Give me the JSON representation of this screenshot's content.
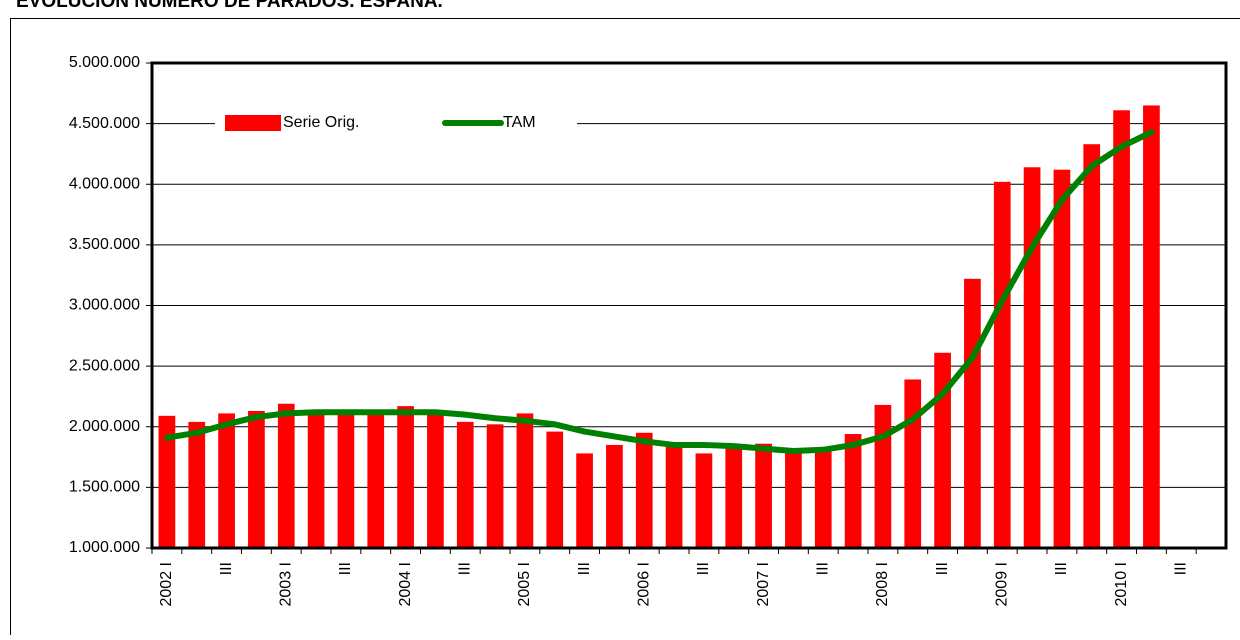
{
  "chart_data": {
    "type": "bar_line",
    "title": "EVOLUCIÓN NÚMERO DE PARADOS. ESPAÑA.",
    "categories": [
      "2002 I",
      null,
      "III",
      null,
      "2003 I",
      null,
      "III",
      null,
      "2004 I",
      null,
      "III",
      null,
      "2005 I",
      null,
      "III",
      null,
      "2006 I",
      null,
      "III",
      null,
      "2007 I",
      null,
      "III",
      null,
      "2008 I",
      null,
      "III",
      null,
      "2009 I",
      null,
      "III",
      null,
      "2010 I",
      null,
      "III",
      null
    ],
    "series": [
      {
        "name": "Serie Orig.",
        "type": "bar",
        "color": "#ff0000",
        "values": [
          2090000,
          2040000,
          2110000,
          2130000,
          2190000,
          2100000,
          2120000,
          2100000,
          2170000,
          2110000,
          2040000,
          2020000,
          2110000,
          1960000,
          1780000,
          1850000,
          1950000,
          1840000,
          1780000,
          1820000,
          1860000,
          1800000,
          1800000,
          1940000,
          2180000,
          2390000,
          2610000,
          3220000,
          4020000,
          4140000,
          4120000,
          4330000,
          4610000,
          4650000,
          null,
          null
        ]
      },
      {
        "name": "TAM",
        "type": "line",
        "color": "#008000",
        "values": [
          1910000,
          1950000,
          2020000,
          2080000,
          2110000,
          2120000,
          2120000,
          2120000,
          2120000,
          2120000,
          2100000,
          2070000,
          2050000,
          2020000,
          1960000,
          1920000,
          1880000,
          1850000,
          1850000,
          1840000,
          1820000,
          1800000,
          1810000,
          1850000,
          1920000,
          2060000,
          2270000,
          2570000,
          3040000,
          3480000,
          3870000,
          4150000,
          4310000,
          4430000,
          null,
          null
        ]
      }
    ],
    "ylim": [
      1000000,
      5000000
    ],
    "yticks": [
      {
        "value": 1000000,
        "label": "1.000.000"
      },
      {
        "value": 1500000,
        "label": "1.500.000"
      },
      {
        "value": 2000000,
        "label": "2.000.000"
      },
      {
        "value": 2500000,
        "label": "2.500.000"
      },
      {
        "value": 3000000,
        "label": "3.000.000"
      },
      {
        "value": 3500000,
        "label": "3.500.000"
      },
      {
        "value": 4000000,
        "label": "4.000.000"
      },
      {
        "value": 4500000,
        "label": "4.500.000"
      },
      {
        "value": 5000000,
        "label": "5.000.000"
      }
    ],
    "grid": true,
    "legend": "top-left"
  }
}
